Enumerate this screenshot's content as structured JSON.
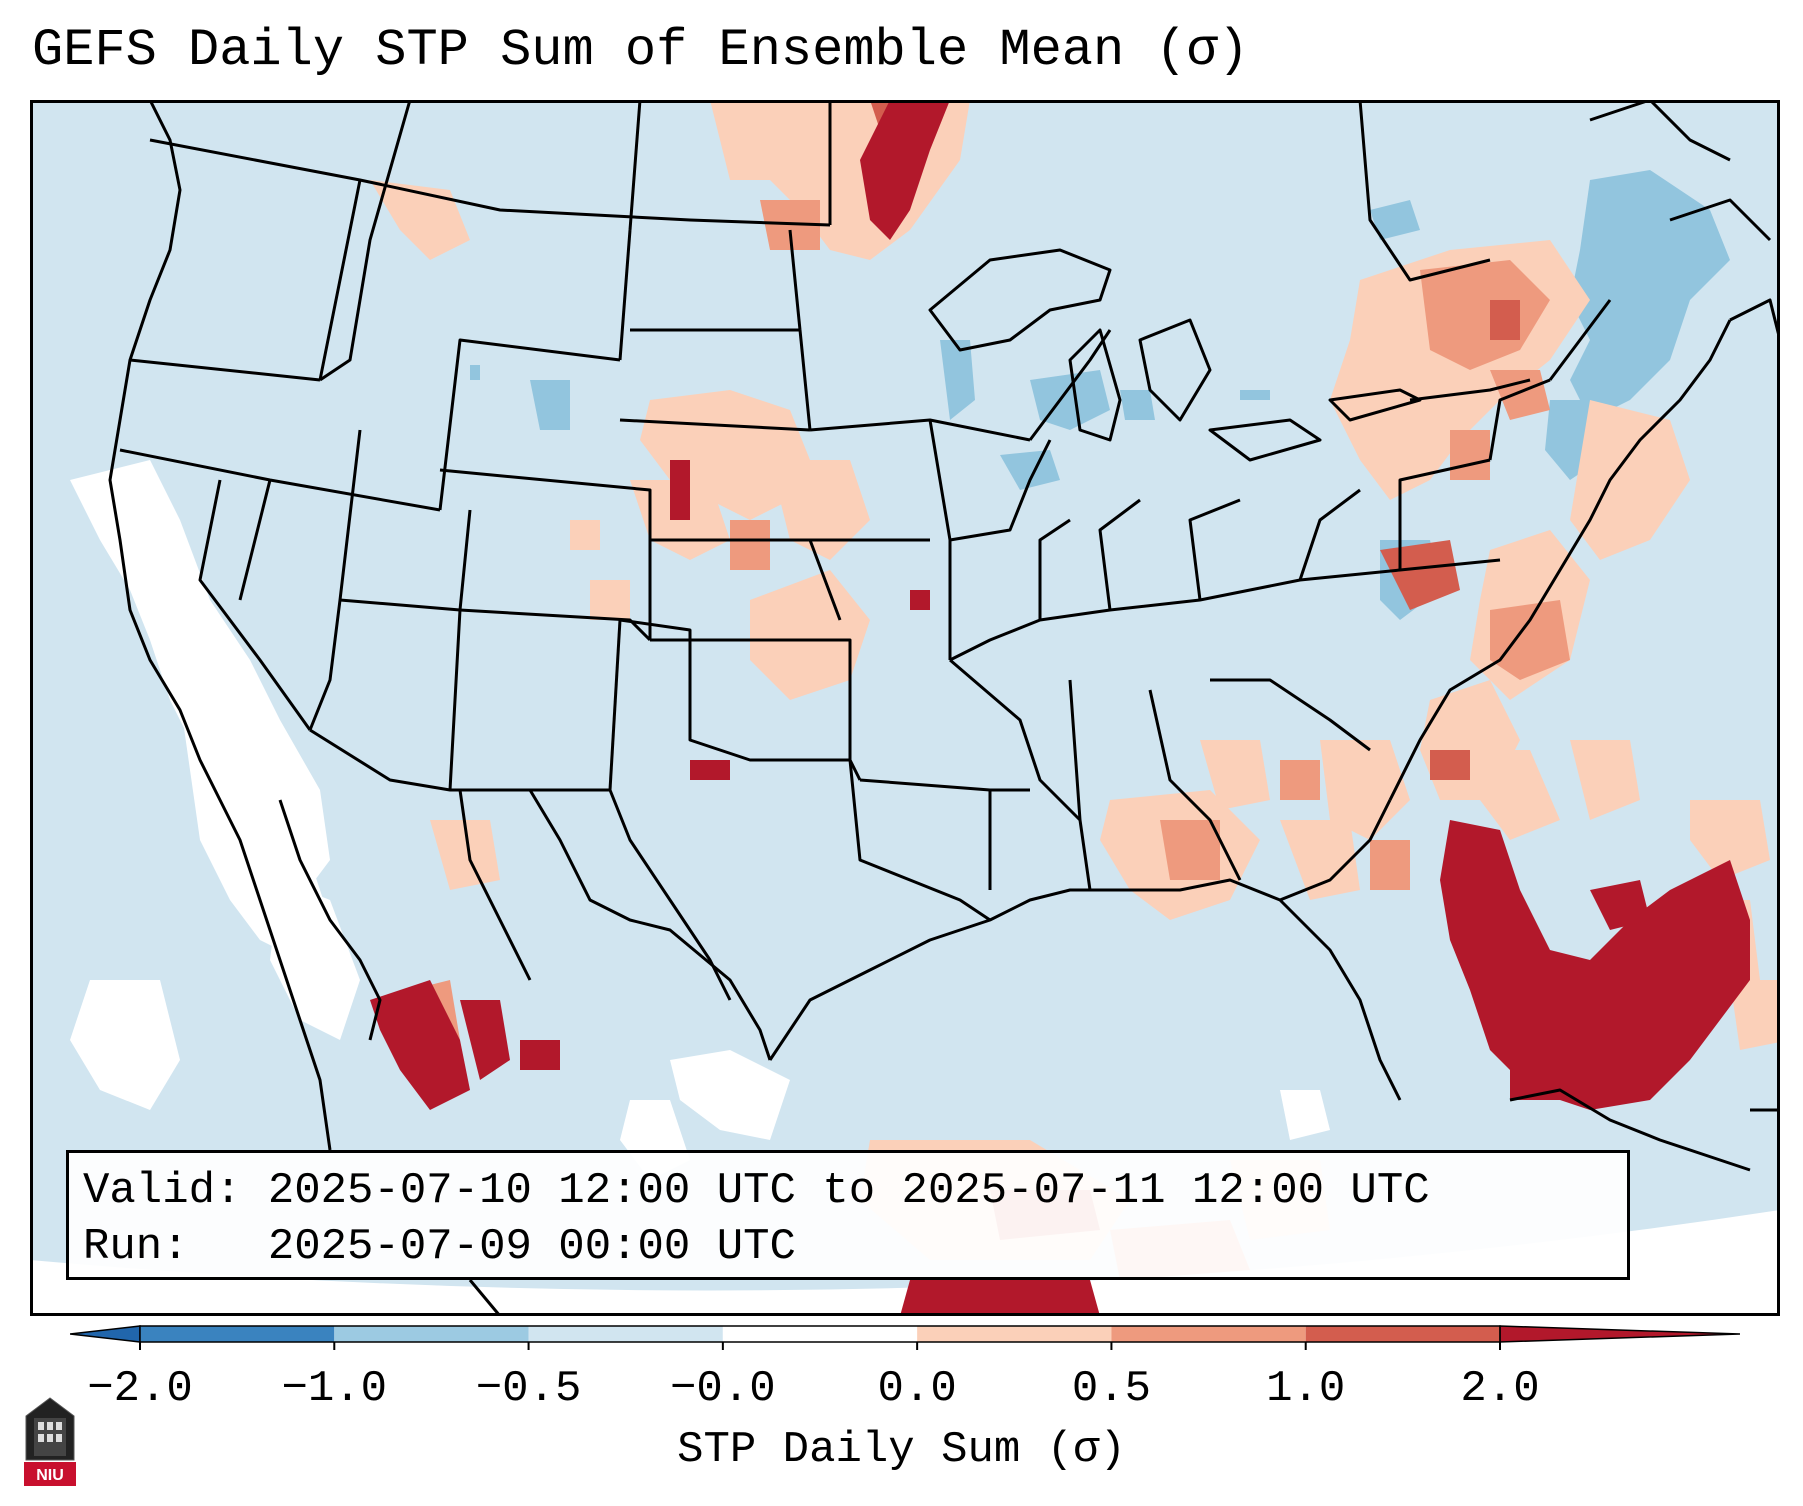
{
  "title": "GEFS Daily STP Sum of Ensemble Mean (σ)",
  "info": {
    "valid_label": "Valid:",
    "valid_range": "2025-07-10 12:00 UTC to 2025-07-11 12:00 UTC",
    "run_label": "Run:",
    "run_time": "2025-07-09 00:00 UTC"
  },
  "colorbar": {
    "label": "STP Daily Sum (σ)",
    "ticks": [
      "−2.0",
      "−1.0",
      "−0.5",
      "−0.0",
      "0.0",
      "0.5",
      "1.0",
      "2.0"
    ],
    "colors": [
      "#3a83bf",
      "#5ea2cf",
      "#9ccae2",
      "#d1e5f0",
      "#ffffff",
      "#fbd0b9",
      "#ee9a7e",
      "#d35d4e",
      "#b2182b"
    ],
    "under_color": "#2166ac",
    "over_color": "#b2182b"
  },
  "map": {
    "background_color": "#d1e5f0",
    "projection": "Lambert conformal, CONUS",
    "field": "GEFS ensemble mean STP daily sum anomaly",
    "anomaly_regions": [
      {
        "name": "northern-minnesota-high",
        "level": 2.0
      },
      {
        "name": "florida-bahamas-high",
        "level": 2.0
      },
      {
        "name": "sonora-mexico-high",
        "level": 2.0
      },
      {
        "name": "gulf-south-mexico-high",
        "level": 2.0
      },
      {
        "name": "carolinas-midatlantic-moderate",
        "level": 1.0
      },
      {
        "name": "great-plains-scattered",
        "level": 0.5
      },
      {
        "name": "southeast-scattered",
        "level": 0.5
      },
      {
        "name": "ohio-valley-slight",
        "level": 0.25
      },
      {
        "name": "new-england-negative",
        "level": -0.5
      },
      {
        "name": "wisconsin-negative",
        "level": -0.5
      },
      {
        "name": "pacific-offshore-neutral",
        "level": 0.0
      }
    ]
  },
  "logo": {
    "text": "NIU",
    "color": "#c8102e"
  }
}
